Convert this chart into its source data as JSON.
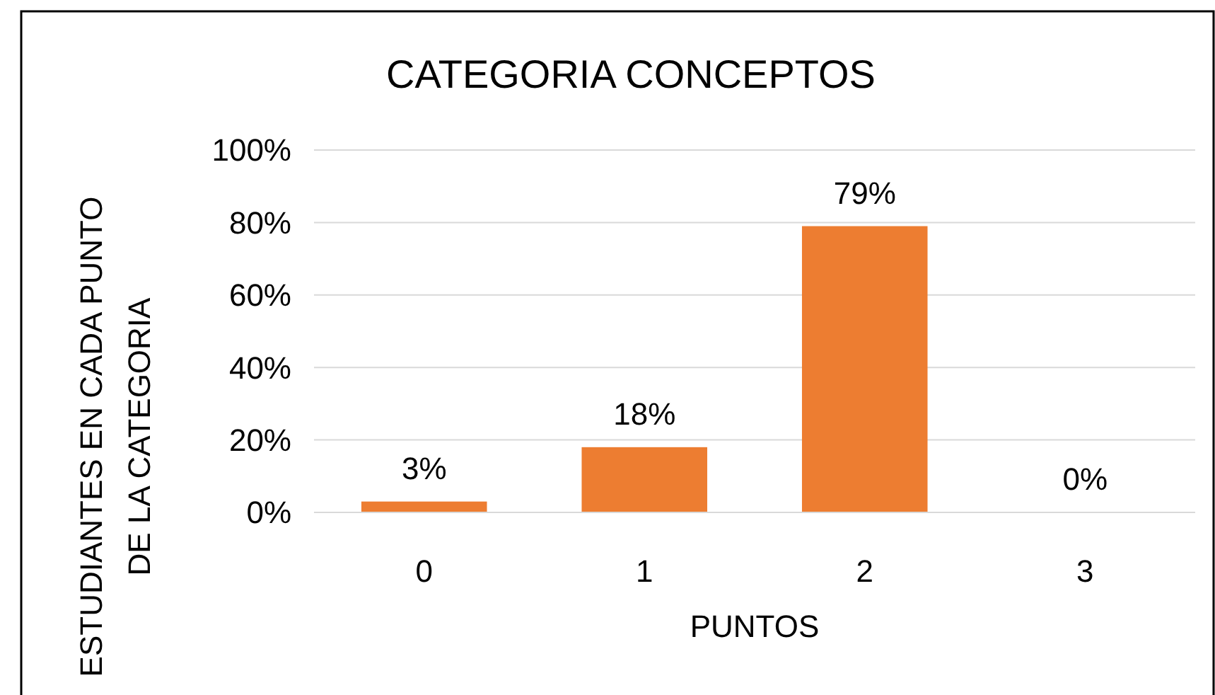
{
  "chart_data": {
    "type": "bar",
    "title": "CATEGORIA CONCEPTOS",
    "xlabel": "PUNTOS",
    "ylabel": "ESTUDIANTES EN CADA PUNTO DE LA CATEGORIA",
    "categories": [
      "0",
      "1",
      "2",
      "3"
    ],
    "values": [
      3,
      18,
      79,
      0
    ],
    "value_labels": [
      "3%",
      "18%",
      "79%",
      "0%"
    ],
    "color": "#ed7d31",
    "ylim": [
      0,
      100
    ],
    "yticks": [
      {
        "value": 0,
        "label": "0%"
      },
      {
        "value": 20,
        "label": "20%"
      },
      {
        "value": 40,
        "label": "40%"
      },
      {
        "value": 60,
        "label": "60%"
      },
      {
        "value": 80,
        "label": "80%"
      },
      {
        "value": 100,
        "label": "100%"
      }
    ],
    "grid": "y"
  }
}
